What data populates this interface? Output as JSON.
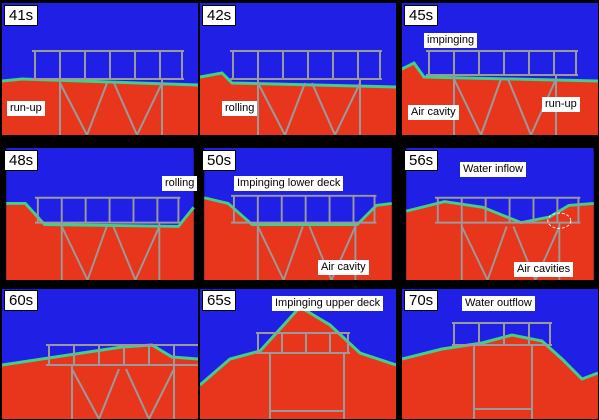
{
  "panels": [
    {
      "time": "41s",
      "labels": [
        "run-up"
      ]
    },
    {
      "time": "42s",
      "labels": [
        "rolling"
      ]
    },
    {
      "time": "45s",
      "labels": [
        "impinging",
        "Air cavity",
        "run-up"
      ]
    },
    {
      "time": "48s",
      "labels": [
        "rolling"
      ]
    },
    {
      "time": "50s",
      "labels": [
        "Impinging lower deck",
        "Air cavity"
      ]
    },
    {
      "time": "56s",
      "labels": [
        "Water inflow",
        "Air cavities"
      ]
    },
    {
      "time": "60s",
      "labels": []
    },
    {
      "time": "65s",
      "labels": [
        "Impinging upper deck"
      ]
    },
    {
      "time": "70s",
      "labels": [
        "Water outflow"
      ]
    }
  ],
  "colors": {
    "air": "#1f1fe6",
    "water": "#e8361c",
    "interface": "#3fd08a",
    "structure": "#9a9a9a",
    "label_bg": "#ffffff"
  }
}
